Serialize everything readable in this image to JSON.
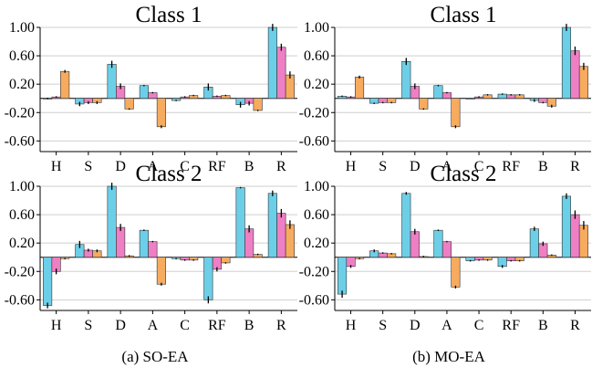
{
  "captions": [
    "(a) SO-EA",
    "(b) MO-EA"
  ],
  "colors": {
    "series1": "#6ccfe8",
    "series2": "#ee7fc4",
    "series3": "#f7ab5f"
  },
  "chart_data": [
    {
      "type": "bar",
      "title": "Class 1",
      "group": "(a) SO-EA",
      "categories": [
        "H",
        "S",
        "D",
        "A",
        "C",
        "RF",
        "B",
        "R"
      ],
      "yticks": [
        "1.00",
        "0.60",
        "0.20",
        "-0.20",
        "-0.60"
      ],
      "ylim": [
        -0.75,
        1.0
      ],
      "grid": true,
      "series": [
        {
          "values": [
            0.0,
            -0.08,
            0.48,
            0.18,
            -0.03,
            0.16,
            -0.09,
            1.0
          ],
          "errors": [
            0.01,
            0.03,
            0.05,
            0.01,
            0.01,
            0.05,
            0.04,
            0.05
          ]
        },
        {
          "values": [
            0.02,
            -0.06,
            0.17,
            0.08,
            0.02,
            0.03,
            -0.07,
            0.72
          ],
          "errors": [
            0.01,
            0.02,
            0.04,
            0.01,
            0.01,
            0.01,
            0.03,
            0.05
          ]
        },
        {
          "values": [
            0.38,
            -0.06,
            -0.15,
            -0.4,
            0.04,
            0.04,
            -0.17,
            0.33
          ],
          "errors": [
            0.02,
            0.02,
            0.01,
            0.02,
            0.01,
            0.01,
            0.01,
            0.05
          ]
        }
      ]
    },
    {
      "type": "bar",
      "title": "Class 1",
      "group": "(b) MO-EA",
      "categories": [
        "H",
        "S",
        "D",
        "A",
        "C",
        "RF",
        "B",
        "R"
      ],
      "yticks": [
        "1.00",
        "0.60",
        "0.20",
        "-0.20",
        "-0.60"
      ],
      "ylim": [
        -0.75,
        1.0
      ],
      "grid": true,
      "series": [
        {
          "values": [
            0.03,
            -0.07,
            0.52,
            0.18,
            0.0,
            0.06,
            -0.03,
            1.0
          ],
          "errors": [
            0.01,
            0.01,
            0.05,
            0.01,
            0.0,
            0.01,
            0.02,
            0.05
          ]
        },
        {
          "values": [
            0.02,
            -0.06,
            0.17,
            0.08,
            0.02,
            0.05,
            -0.06,
            0.67
          ],
          "errors": [
            0.01,
            0.01,
            0.04,
            0.01,
            0.01,
            0.01,
            0.01,
            0.06
          ]
        },
        {
          "values": [
            0.3,
            -0.06,
            -0.15,
            -0.4,
            0.05,
            0.05,
            -0.11,
            0.45
          ],
          "errors": [
            0.02,
            0.01,
            0.01,
            0.02,
            0.01,
            0.01,
            0.02,
            0.05
          ]
        }
      ]
    },
    {
      "type": "bar",
      "title": "Class 2",
      "group": "(a) SO-EA",
      "categories": [
        "H",
        "S",
        "D",
        "A",
        "C",
        "RF",
        "B",
        "R"
      ],
      "yticks": [
        "1.00",
        "0.60",
        "0.20",
        "-0.20",
        "-0.60"
      ],
      "ylim": [
        -0.75,
        1.0
      ],
      "grid": true,
      "series": [
        {
          "values": [
            -0.68,
            0.18,
            1.0,
            0.38,
            -0.02,
            -0.6,
            0.98,
            0.9
          ],
          "errors": [
            0.04,
            0.05,
            0.05,
            0.01,
            0.01,
            0.05,
            0.01,
            0.04
          ]
        },
        {
          "values": [
            -0.2,
            0.1,
            0.42,
            0.22,
            -0.04,
            -0.17,
            0.4,
            0.62
          ],
          "errors": [
            0.04,
            0.02,
            0.05,
            0.01,
            0.01,
            0.03,
            0.05,
            0.06
          ]
        },
        {
          "values": [
            -0.02,
            0.09,
            0.02,
            -0.38,
            -0.04,
            -0.08,
            0.04,
            0.46
          ],
          "errors": [
            0.01,
            0.02,
            0.01,
            0.02,
            0.01,
            0.01,
            0.01,
            0.06
          ]
        }
      ]
    },
    {
      "type": "bar",
      "title": "Class 2",
      "group": "(b) MO-EA",
      "categories": [
        "H",
        "S",
        "D",
        "A",
        "C",
        "RF",
        "B",
        "R"
      ],
      "yticks": [
        "1.00",
        "0.60",
        "0.20",
        "-0.20",
        "-0.60"
      ],
      "ylim": [
        -0.75,
        1.0
      ],
      "grid": true,
      "series": [
        {
          "values": [
            -0.52,
            0.09,
            0.9,
            0.38,
            -0.05,
            -0.13,
            0.4,
            0.86
          ],
          "errors": [
            0.05,
            0.02,
            0.02,
            0.01,
            0.01,
            0.02,
            0.03,
            0.04
          ]
        },
        {
          "values": [
            -0.13,
            0.06,
            0.36,
            0.22,
            -0.04,
            -0.05,
            0.19,
            0.6
          ],
          "errors": [
            0.02,
            0.01,
            0.04,
            0.01,
            0.01,
            0.01,
            0.03,
            0.06
          ]
        },
        {
          "values": [
            -0.02,
            0.05,
            0.01,
            -0.42,
            -0.04,
            -0.05,
            0.03,
            0.45
          ],
          "errors": [
            0.01,
            0.01,
            0.01,
            0.02,
            0.01,
            0.01,
            0.01,
            0.06
          ]
        }
      ]
    }
  ]
}
